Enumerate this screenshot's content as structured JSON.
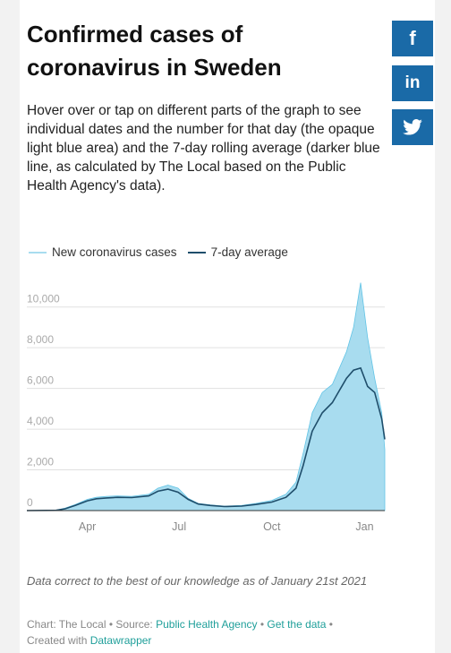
{
  "header": {
    "title": "Confirmed cases of coronavirus in Sweden",
    "description": "Hover over or tap on different parts of the graph to see individual dates and the number for that day (the opaque light blue area) and the 7-day rolling average (darker blue line, as calculated by The Local based on the Public Health Agency's data)."
  },
  "share": {
    "facebook_icon": "f",
    "linkedin_icon": "in",
    "twitter_icon": "twitter-bird-icon"
  },
  "legend": {
    "new_cases": "New coronavirus cases",
    "avg": "7-day average"
  },
  "footer": {
    "note": "Data correct to the best of our knowledge as of January 21st 2021",
    "chart_by": "Chart: The Local",
    "source_prefix": "Source:",
    "source_link": "Public Health Agency",
    "get_data": "Get the data",
    "created_with": "Created with",
    "datawrapper": "Datawrapper",
    "sep": "•"
  },
  "colors": {
    "area": "#a8dcef",
    "spikes": "#62c4e6",
    "line": "#1f4e6b",
    "grid": "#e0e0e0",
    "share": "#1a6aa7",
    "link": "#1f9f9a"
  },
  "chart_data": {
    "type": "area",
    "ylim": [
      0,
      11000
    ],
    "yticks": [
      0,
      2000,
      4000,
      6000,
      8000,
      10000
    ],
    "ytick_labels": [
      "0",
      "2,000",
      "4,000",
      "6,000",
      "8,000",
      "10,000"
    ],
    "xlim": [
      "2020-02-01",
      "2021-01-21"
    ],
    "xticks": [
      {
        "date": "2020-04-01",
        "label": "Apr"
      },
      {
        "date": "2020-07-01",
        "label": "Jul"
      },
      {
        "date": "2020-10-01",
        "label": "Oct"
      },
      {
        "date": "2021-01-01",
        "label": "Jan"
      }
    ],
    "series": [
      {
        "name": "New coronavirus cases",
        "x": [
          "2020-02-01",
          "2020-03-01",
          "2020-03-10",
          "2020-03-20",
          "2020-04-01",
          "2020-04-10",
          "2020-04-20",
          "2020-05-01",
          "2020-05-15",
          "2020-06-01",
          "2020-06-10",
          "2020-06-20",
          "2020-06-30",
          "2020-07-10",
          "2020-07-20",
          "2020-08-01",
          "2020-08-15",
          "2020-09-01",
          "2020-09-15",
          "2020-10-01",
          "2020-10-15",
          "2020-10-25",
          "2020-11-01",
          "2020-11-10",
          "2020-11-20",
          "2020-11-30",
          "2020-12-07",
          "2020-12-14",
          "2020-12-21",
          "2020-12-28",
          "2021-01-04",
          "2021-01-11",
          "2021-01-18",
          "2021-01-21"
        ],
        "values": [
          0,
          20,
          120,
          300,
          550,
          650,
          700,
          720,
          700,
          800,
          1100,
          1250,
          1100,
          600,
          350,
          280,
          220,
          250,
          350,
          500,
          800,
          1400,
          2800,
          4800,
          5800,
          6200,
          7000,
          7800,
          9000,
          11200,
          8500,
          6500,
          4800,
          3000
        ]
      },
      {
        "name": "7-day average",
        "x": [
          "2020-02-01",
          "2020-03-01",
          "2020-03-10",
          "2020-03-20",
          "2020-04-01",
          "2020-04-10",
          "2020-04-20",
          "2020-05-01",
          "2020-05-15",
          "2020-06-01",
          "2020-06-10",
          "2020-06-20",
          "2020-06-30",
          "2020-07-10",
          "2020-07-20",
          "2020-08-01",
          "2020-08-15",
          "2020-09-01",
          "2020-09-15",
          "2020-10-01",
          "2020-10-15",
          "2020-10-25",
          "2020-11-01",
          "2020-11-10",
          "2020-11-20",
          "2020-11-30",
          "2020-12-07",
          "2020-12-14",
          "2020-12-21",
          "2020-12-28",
          "2021-01-04",
          "2021-01-11",
          "2021-01-18",
          "2021-01-21"
        ],
        "values": [
          0,
          15,
          90,
          250,
          480,
          580,
          620,
          650,
          640,
          720,
          950,
          1050,
          900,
          550,
          320,
          250,
          200,
          220,
          300,
          420,
          650,
          1100,
          2200,
          3900,
          4800,
          5300,
          5900,
          6500,
          6900,
          7000,
          6100,
          5800,
          4500,
          3500
        ]
      }
    ]
  }
}
